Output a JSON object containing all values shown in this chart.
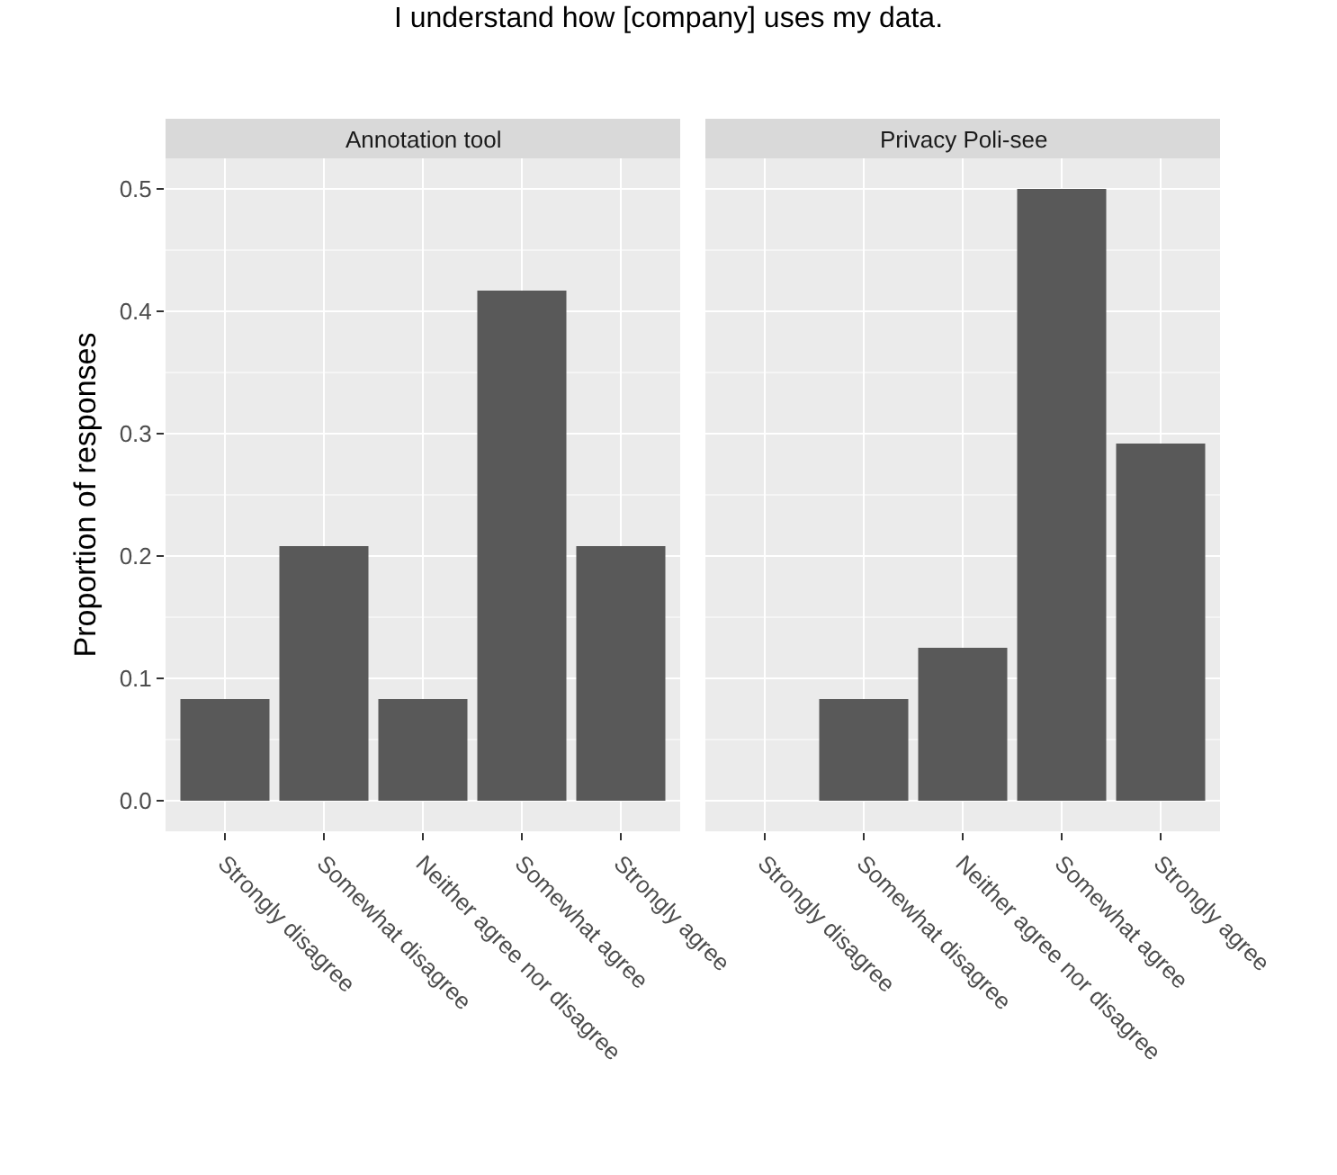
{
  "chart_data": [
    {
      "type": "bar",
      "title": "I understand how [company] uses my data.",
      "subtitle": "Annotation tool",
      "ylabel": "Proportion of responses",
      "categories": [
        "Strongly disagree",
        "Somewhat disagree",
        "Neither agree nor disagree",
        "Somewhat agree",
        "Strongly agree"
      ],
      "values": [
        0.083,
        0.208,
        0.083,
        0.417,
        0.208
      ],
      "color": "#595959",
      "ylim": [
        -0.025,
        0.525
      ],
      "yticks": [
        {
          "value": 0,
          "label": "0.0"
        },
        0.1,
        0.2,
        0.3,
        0.4,
        0.5
      ],
      "grid": true
    },
    {
      "type": "bar",
      "subtitle": "Privacy Poli-see",
      "categories": [
        "Strongly disagree",
        "Somewhat disagree",
        "Neither agree nor disagree",
        "Somewhat agree",
        "Strongly agree"
      ],
      "values": [
        0,
        0.083,
        0.125,
        0.5,
        0.292
      ],
      "color": "#595959",
      "ylim": [
        -0.025,
        0.525
      ],
      "yticks": [
        0,
        0.1,
        0.2,
        0.3,
        0.4,
        0.5
      ],
      "grid": true,
      "tick_labels": "x"
    }
  ]
}
